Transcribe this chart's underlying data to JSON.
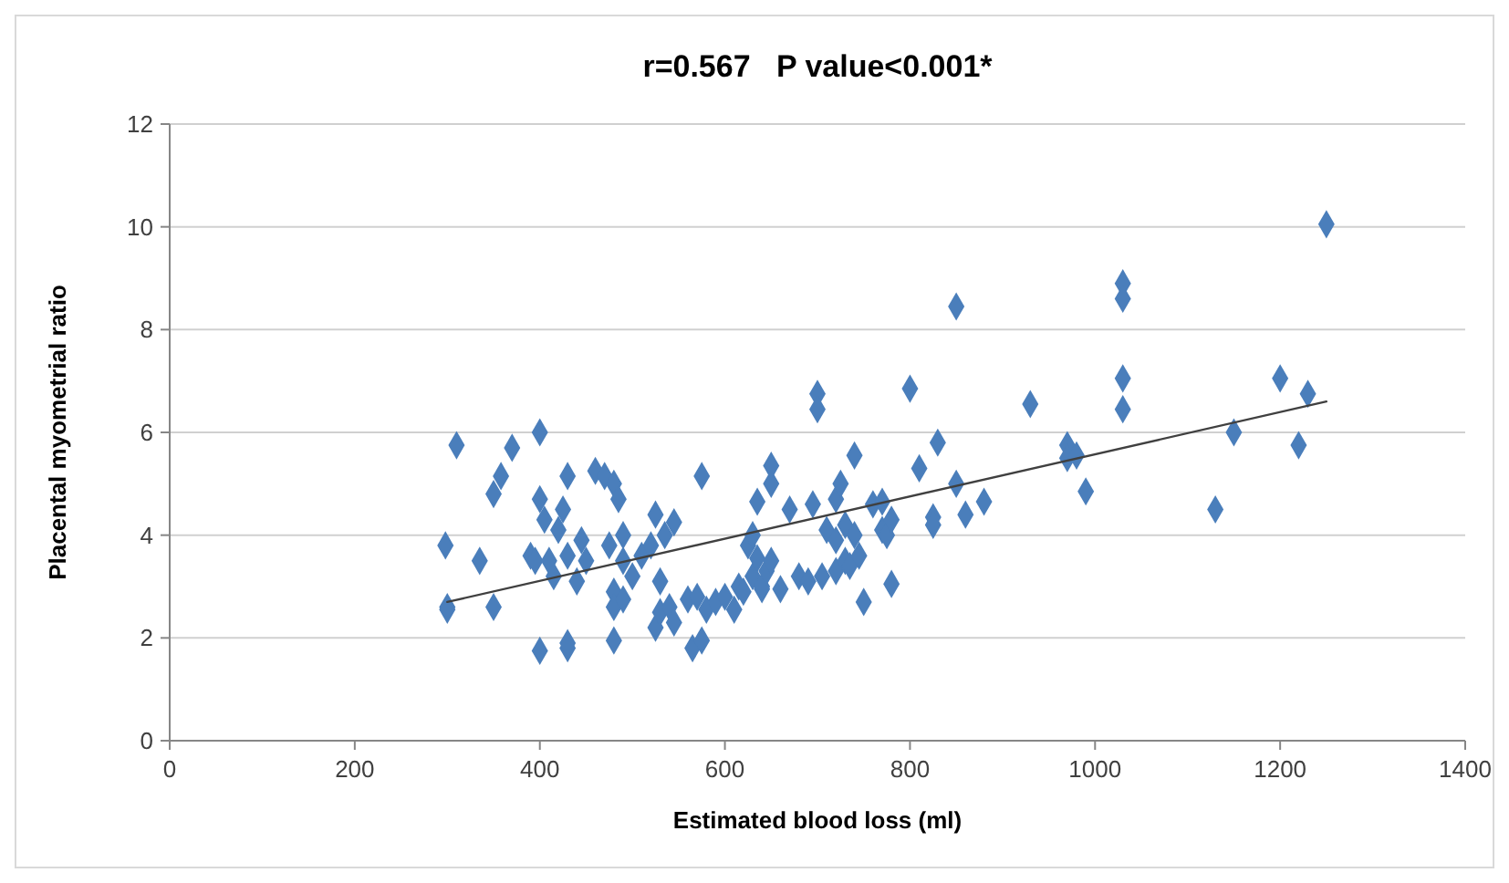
{
  "chart_data": {
    "type": "scatter",
    "title": "r=0.567   P value<0.001*",
    "xlabel": "Estimated blood loss (ml)",
    "ylabel": "Placental myometrial ratio",
    "xlim": [
      0,
      1400
    ],
    "xticks": [
      0,
      200,
      400,
      600,
      800,
      1000,
      1200,
      1400
    ],
    "ylim": [
      0,
      12
    ],
    "yticks": [
      0,
      2,
      4,
      6,
      8,
      10,
      12
    ],
    "grid": "y",
    "marker": "diamond",
    "series": [
      {
        "color": "#4a7ebb",
        "x": [
          300,
          300,
          298,
          310,
          335,
          350,
          350,
          358,
          370,
          390,
          395,
          400,
          400,
          400,
          405,
          410,
          415,
          420,
          425,
          430,
          430,
          430,
          430,
          440,
          445,
          450,
          460,
          470,
          475,
          480,
          480,
          480,
          480,
          485,
          490,
          490,
          490,
          500,
          510,
          520,
          525,
          525,
          530,
          530,
          535,
          540,
          545,
          545,
          560,
          565,
          570,
          575,
          575,
          580,
          590,
          600,
          610,
          615,
          620,
          625,
          630,
          630,
          635,
          635,
          640,
          640,
          645,
          650,
          650,
          650,
          660,
          670,
          680,
          690,
          695,
          700,
          700,
          705,
          710,
          720,
          720,
          720,
          725,
          730,
          730,
          735,
          740,
          740,
          745,
          750,
          760,
          770,
          770,
          775,
          780,
          780,
          800,
          810,
          825,
          830,
          825,
          850,
          850,
          860,
          880,
          930,
          970,
          970,
          980,
          990,
          1030,
          1030,
          1030,
          1030,
          1130,
          1150,
          1200,
          1220,
          1230,
          1250
        ],
        "values": [
          2.6,
          2.55,
          3.8,
          5.75,
          3.5,
          2.6,
          4.8,
          5.15,
          5.7,
          3.6,
          3.5,
          6.0,
          4.7,
          1.75,
          4.3,
          3.5,
          3.2,
          4.1,
          4.5,
          3.6,
          5.15,
          1.8,
          1.9,
          3.1,
          3.9,
          3.5,
          5.25,
          5.15,
          3.8,
          5.0,
          2.9,
          2.6,
          1.95,
          4.7,
          4.0,
          3.5,
          2.75,
          3.2,
          3.6,
          3.8,
          4.4,
          2.2,
          2.5,
          3.1,
          4.0,
          2.6,
          2.3,
          4.25,
          2.75,
          1.8,
          2.8,
          5.15,
          1.95,
          2.55,
          2.7,
          2.8,
          2.55,
          3.0,
          2.9,
          3.8,
          4.0,
          3.2,
          3.55,
          4.65,
          2.95,
          3.0,
          3.3,
          3.5,
          5.0,
          5.35,
          2.95,
          4.5,
          3.2,
          3.1,
          4.6,
          6.75,
          6.45,
          3.2,
          4.1,
          3.9,
          4.7,
          3.3,
          5.0,
          4.2,
          3.5,
          3.4,
          5.55,
          4.0,
          3.6,
          2.7,
          4.6,
          4.65,
          4.1,
          4.0,
          3.05,
          4.3,
          6.85,
          5.3,
          4.35,
          5.8,
          4.2,
          8.45,
          5.0,
          4.4,
          4.65,
          6.55,
          5.75,
          5.5,
          5.55,
          4.85,
          8.9,
          8.6,
          7.05,
          6.45,
          4.5,
          6.0,
          7.05,
          5.75,
          6.75,
          10.05
        ]
      },
      {
        "type": "line",
        "marker": "none",
        "color": "#404040",
        "x": [
          300,
          1250
        ],
        "values": [
          2.7,
          6.6
        ]
      }
    ]
  }
}
